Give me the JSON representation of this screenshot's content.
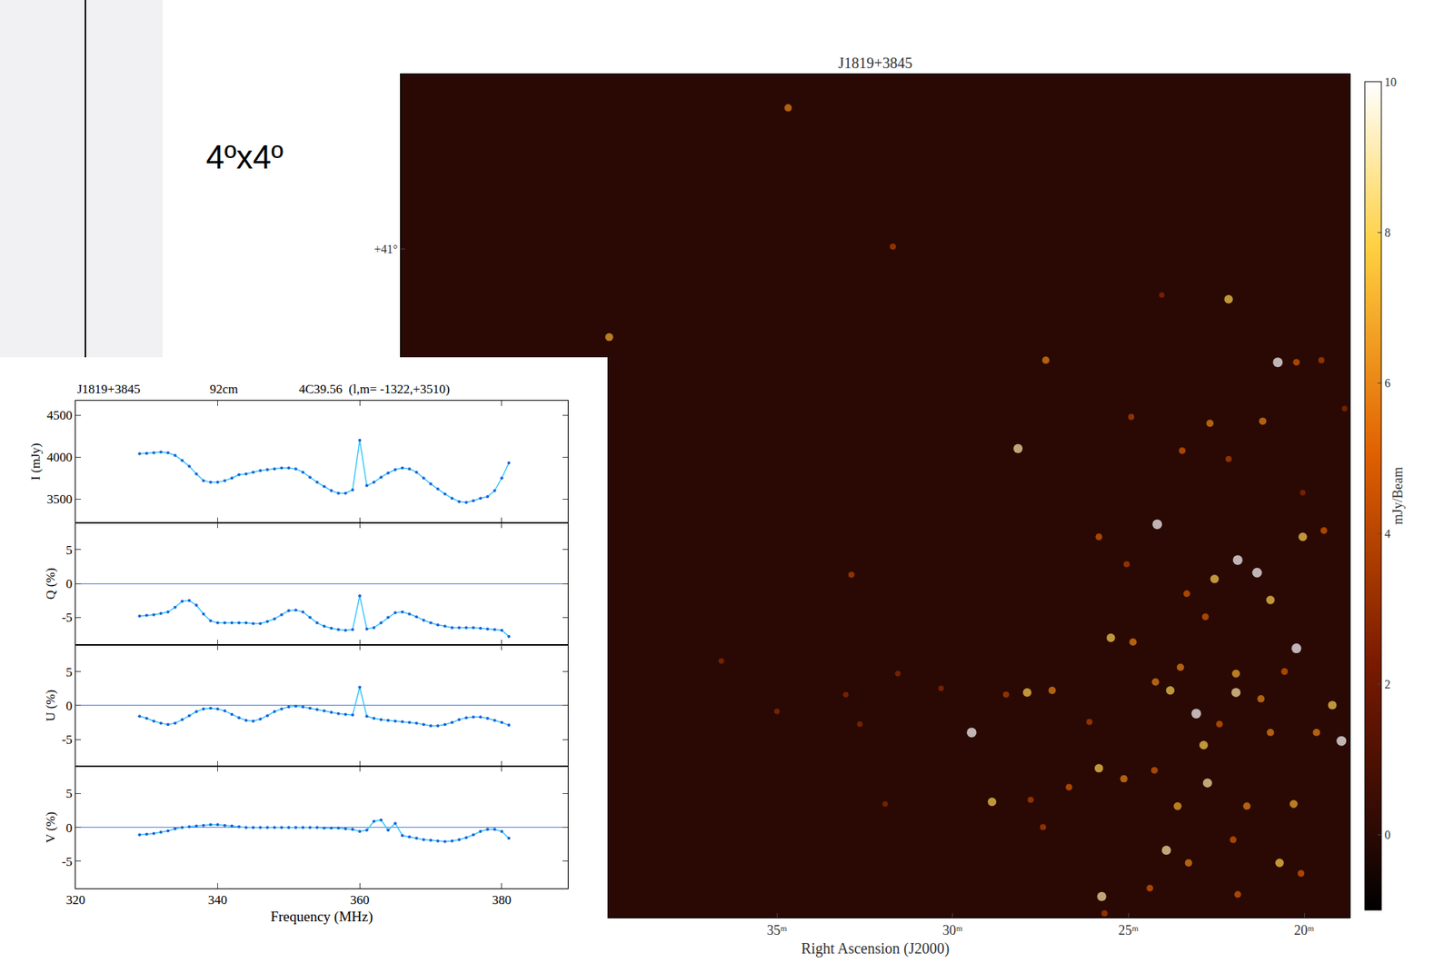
{
  "page": {
    "label": "4ºx4º"
  },
  "chart_data": [
    {
      "type": "scatter",
      "title": "J1819+3845",
      "x_label": "Right Ascension (J2000)",
      "xlim": [
        45.7,
        18.7
      ],
      "xticks": [
        {
          "value": 35,
          "label": "35ᵐ"
        },
        {
          "value": 30,
          "label": "30ᵐ"
        },
        {
          "value": 25,
          "label": "25ᵐ"
        },
        {
          "value": 20,
          "label": "20ᵐ"
        }
      ],
      "ylim": [
        37.82,
        41.83
      ],
      "yticks": [
        {
          "value": 41,
          "label": "+41°"
        }
      ],
      "sources": {
        "x": [
          34.68,
          31.7,
          39.77,
          22.15,
          24.05,
          20.75,
          20.22,
          19.51,
          27.35,
          28.14,
          22.68,
          21.18,
          24.92,
          23.47,
          24.18,
          21.89,
          21.34,
          22.55,
          20.04,
          19.44,
          25.84,
          25.05,
          23.34,
          20.96,
          22.81,
          25.5,
          24.87,
          20.22,
          20.56,
          21.94,
          23.52,
          23.07,
          23.81,
          24.23,
          21.94,
          21.23,
          22.41,
          19.2,
          18.94,
          19.65,
          20.96,
          22.86,
          25.84,
          25.13,
          24.26,
          22.75,
          23.6,
          21.63,
          20.3,
          23.92,
          23.29,
          22.02,
          20.7,
          20.09,
          25.76,
          24.39,
          21.89,
          29.46,
          28.88,
          27.88,
          27.17,
          28.48,
          26.69,
          27.78,
          27.43,
          26.11,
          32.88,
          31.56,
          33.04,
          35.0,
          36.58,
          32.64,
          31.92,
          30.33,
          22.15,
          20.04,
          18.85,
          25.68
        ],
        "y": [
          41.67,
          41.01,
          40.58,
          40.76,
          40.78,
          40.46,
          40.46,
          40.47,
          40.47,
          40.05,
          40.17,
          40.18,
          40.2,
          40.04,
          39.69,
          39.52,
          39.46,
          39.43,
          39.63,
          39.66,
          39.63,
          39.5,
          39.36,
          39.33,
          39.25,
          39.15,
          39.13,
          39.1,
          38.99,
          38.98,
          39.01,
          38.79,
          38.9,
          38.94,
          38.89,
          38.86,
          38.74,
          38.83,
          38.66,
          38.7,
          38.7,
          38.64,
          38.53,
          38.48,
          38.52,
          38.46,
          38.35,
          38.35,
          38.36,
          38.14,
          38.08,
          38.19,
          38.08,
          38.03,
          37.92,
          37.96,
          37.93,
          38.7,
          38.37,
          38.89,
          38.9,
          38.88,
          38.44,
          38.38,
          38.25,
          38.75,
          39.45,
          38.98,
          38.88,
          38.8,
          39.04,
          38.74,
          38.36,
          38.91,
          40.0,
          39.84,
          40.24,
          37.84
        ],
        "flux": [
          6,
          4,
          7,
          8,
          3,
          10,
          5,
          4,
          6,
          9,
          6,
          6,
          4,
          5,
          10,
          10,
          10,
          8,
          8,
          5,
          5,
          4,
          5,
          8,
          5,
          8,
          6,
          10,
          5,
          7,
          6,
          10,
          8,
          6,
          9,
          6,
          5,
          8,
          10,
          6,
          6,
          8,
          8,
          6,
          5,
          9,
          7,
          6,
          7,
          9,
          6,
          5,
          8,
          5,
          9,
          5,
          5,
          10,
          8,
          8,
          6,
          4,
          5,
          4,
          4,
          4,
          4,
          3,
          3,
          3,
          3,
          3,
          3,
          3,
          4,
          3,
          3,
          4
        ]
      },
      "colorbar": {
        "title": "mJy/Beam",
        "range": [
          -1,
          10
        ],
        "ticks": [
          0,
          2,
          4,
          6,
          8,
          10
        ]
      }
    },
    {
      "type": "line",
      "title_parts": [
        "J1819+3845",
        "92cm",
        "4C39.56  (l,m= -1322,+3510)"
      ],
      "x_label": "Frequency (MHz)",
      "xlim": [
        320,
        389.3
      ],
      "xticks": [
        320,
        340,
        360,
        380
      ],
      "color": "#1f5fd6",
      "marker": "circle",
      "x": [
        329,
        330,
        331,
        332,
        333,
        334,
        335,
        336,
        337,
        338,
        339,
        340,
        341,
        342,
        343,
        344,
        345,
        346,
        347,
        348,
        349,
        350,
        351,
        352,
        353,
        354,
        355,
        356,
        357,
        358,
        359,
        360,
        361,
        362,
        363,
        364,
        365,
        366,
        367,
        368,
        369,
        370,
        371,
        372,
        373,
        374,
        375,
        376,
        377,
        378,
        379,
        380,
        381
      ],
      "panels": [
        {
          "y_label": "I (mJy)",
          "ylim": [
            3220,
            4670
          ],
          "yticks": [
            3500,
            4000,
            4500
          ],
          "values": [
            4040,
            4045,
            4050,
            4060,
            4050,
            4020,
            3960,
            3890,
            3800,
            3720,
            3700,
            3700,
            3720,
            3750,
            3790,
            3800,
            3820,
            3840,
            3850,
            3860,
            3870,
            3870,
            3860,
            3820,
            3760,
            3700,
            3650,
            3600,
            3570,
            3570,
            3610,
            4200,
            3660,
            3700,
            3760,
            3810,
            3850,
            3870,
            3860,
            3820,
            3750,
            3680,
            3620,
            3560,
            3510,
            3470,
            3460,
            3480,
            3510,
            3530,
            3600,
            3750,
            3930
          ]
        },
        {
          "y_label": "Q (%)",
          "ylim": [
            -9,
            9
          ],
          "yticks": [
            -5,
            0,
            5
          ],
          "values": [
            -4.8,
            -4.7,
            -4.6,
            -4.4,
            -4.2,
            -3.5,
            -2.6,
            -2.5,
            -3.2,
            -4.5,
            -5.5,
            -5.8,
            -5.8,
            -5.8,
            -5.8,
            -5.8,
            -5.9,
            -5.9,
            -5.6,
            -5.2,
            -4.6,
            -4.0,
            -3.9,
            -4.2,
            -5.0,
            -5.8,
            -6.3,
            -6.6,
            -6.8,
            -6.9,
            -6.8,
            -1.8,
            -6.7,
            -6.5,
            -5.8,
            -5.0,
            -4.3,
            -4.2,
            -4.5,
            -4.9,
            -5.4,
            -5.8,
            -6.1,
            -6.3,
            -6.5,
            -6.5,
            -6.5,
            -6.5,
            -6.6,
            -6.7,
            -6.8,
            -6.9,
            -7.8
          ]
        },
        {
          "y_label": "U (%)",
          "ylim": [
            -9,
            9
          ],
          "yticks": [
            -5,
            0,
            5
          ],
          "values": [
            -1.6,
            -1.9,
            -2.3,
            -2.6,
            -2.8,
            -2.6,
            -2.1,
            -1.5,
            -0.9,
            -0.5,
            -0.4,
            -0.5,
            -0.8,
            -1.3,
            -1.8,
            -2.2,
            -2.3,
            -2.0,
            -1.5,
            -0.9,
            -0.5,
            -0.2,
            -0.1,
            -0.2,
            -0.4,
            -0.6,
            -0.8,
            -1.0,
            -1.2,
            -1.3,
            -1.4,
            2.7,
            -1.6,
            -1.9,
            -2.1,
            -2.2,
            -2.3,
            -2.4,
            -2.5,
            -2.6,
            -2.8,
            -3.0,
            -3.0,
            -2.8,
            -2.5,
            -2.1,
            -1.8,
            -1.7,
            -1.7,
            -1.9,
            -2.2,
            -2.5,
            -2.9
          ]
        },
        {
          "y_label": "V (%)",
          "ylim": [
            -9,
            9
          ],
          "yticks": [
            -5,
            0,
            5
          ],
          "values": [
            -1.1,
            -1.0,
            -0.9,
            -0.7,
            -0.5,
            -0.2,
            0.0,
            0.1,
            0.2,
            0.3,
            0.4,
            0.4,
            0.3,
            0.2,
            0.1,
            0.0,
            0.0,
            0.0,
            0.0,
            0.0,
            0.0,
            0.0,
            0.0,
            0.0,
            0.0,
            0.0,
            -0.1,
            -0.1,
            -0.1,
            -0.2,
            -0.3,
            -0.6,
            -0.4,
            0.9,
            1.1,
            -0.4,
            0.6,
            -1.2,
            -1.4,
            -1.6,
            -1.8,
            -1.9,
            -2.0,
            -2.1,
            -2.0,
            -1.8,
            -1.5,
            -1.1,
            -0.6,
            -0.3,
            -0.3,
            -0.6,
            -1.6
          ]
        }
      ]
    }
  ]
}
